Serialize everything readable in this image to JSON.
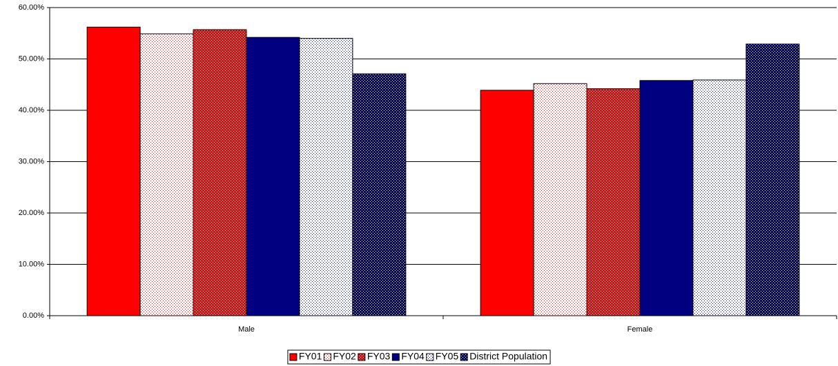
{
  "chart_data": {
    "type": "bar",
    "categories": [
      "Male",
      "Female"
    ],
    "series": [
      {
        "name": "FY01",
        "color": "#ff0000",
        "pattern": "solid",
        "values": [
          56.2,
          43.9
        ]
      },
      {
        "name": "FY02",
        "color": "#ff0000",
        "pattern": "sparse",
        "values": [
          54.9,
          45.2
        ]
      },
      {
        "name": "FY03",
        "color": "#ff0000",
        "pattern": "dense",
        "values": [
          55.7,
          44.2
        ]
      },
      {
        "name": "FY04",
        "color": "#000080",
        "pattern": "solid",
        "values": [
          54.2,
          45.8
        ]
      },
      {
        "name": "FY05",
        "color": "#000080",
        "pattern": "sparse",
        "values": [
          54.0,
          45.9
        ]
      },
      {
        "name": "District Population",
        "color": "#000080",
        "pattern": "dense",
        "values": [
          47.1,
          52.9
        ]
      }
    ],
    "ylim": [
      0,
      60
    ],
    "yticks": [
      {
        "value": 0,
        "label": "0.00%"
      },
      {
        "value": 10,
        "label": "10.00%"
      },
      {
        "value": 20,
        "label": "20.00%"
      },
      {
        "value": 30,
        "label": "30.00%"
      },
      {
        "value": 40,
        "label": "40.00%"
      },
      {
        "value": 50,
        "label": "50.00%"
      },
      {
        "value": 60,
        "label": "60.00%"
      }
    ],
    "grid": true
  }
}
